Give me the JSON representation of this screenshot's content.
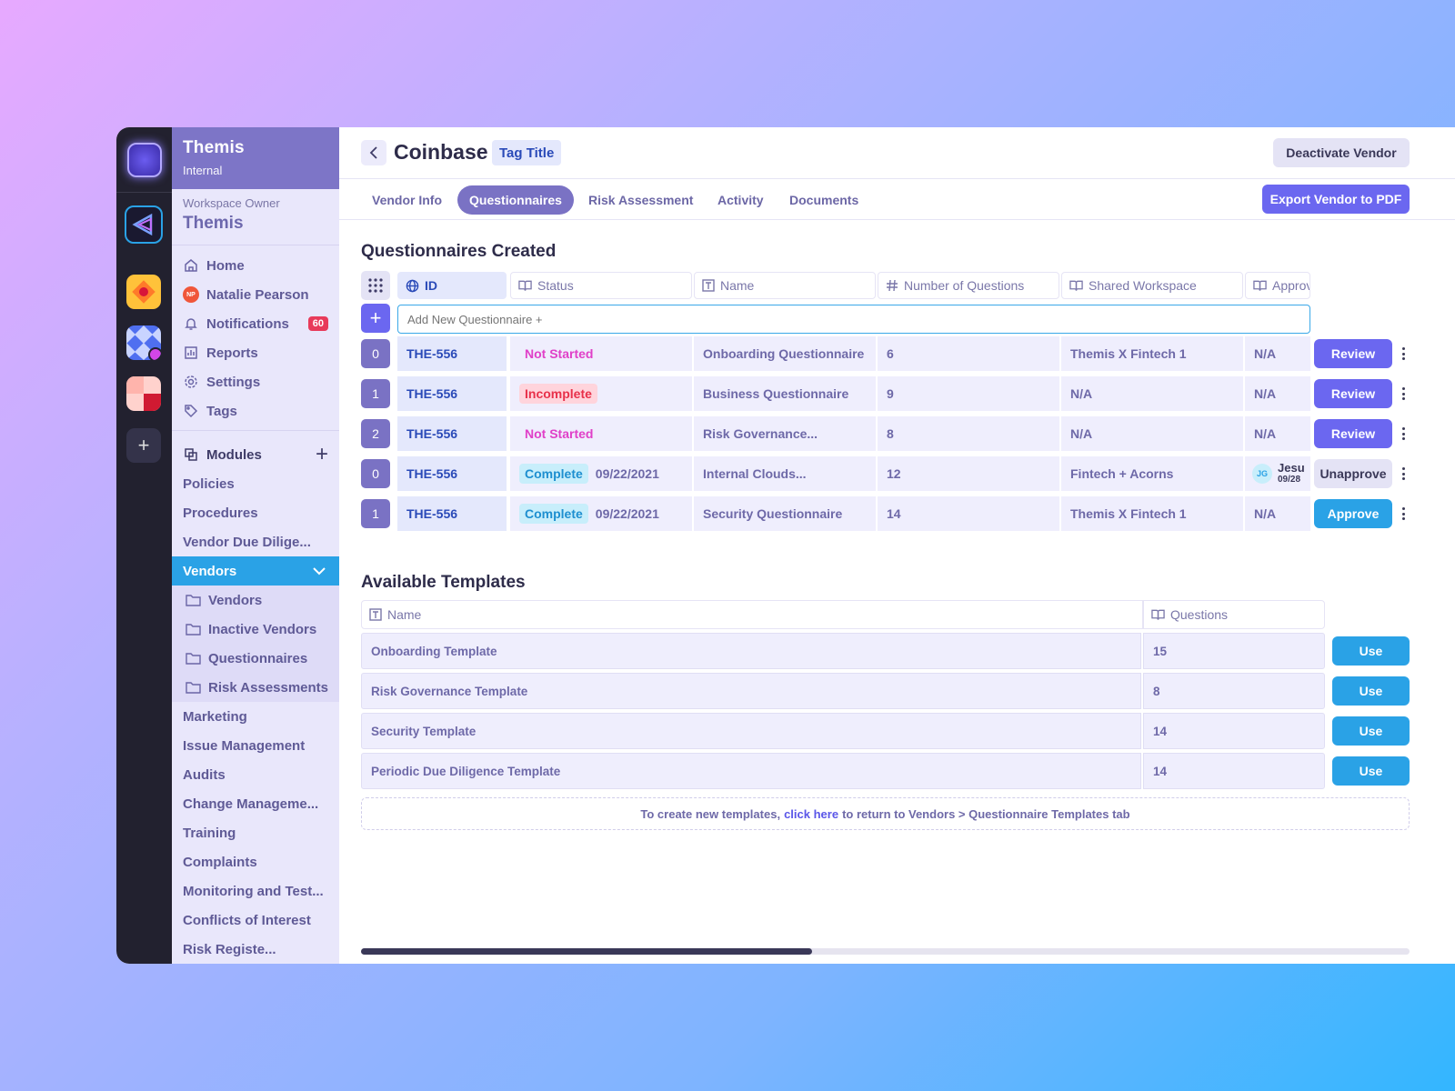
{
  "workspace": {
    "org_name": "Themis",
    "org_sub": "Internal",
    "owner_label": "Workspace Owner",
    "owner_name": "Themis"
  },
  "nav": {
    "home": "Home",
    "user": "Natalie Pearson",
    "user_initials": "NP",
    "notifications": "Notifications",
    "notifications_count": "60",
    "reports": "Reports",
    "settings": "Settings",
    "tags": "Tags",
    "modules": "Modules",
    "modules_items": [
      "Policies",
      "Procedures",
      "Vendor Due Dilige..."
    ],
    "vendors": "Vendors",
    "vendor_sub": [
      "Vendors",
      "Inactive Vendors",
      "Questionnaires",
      "Risk Assessments"
    ],
    "more": [
      "Marketing",
      "Issue Management",
      "Audits",
      "Change Manageme...",
      "Training",
      "Complaints",
      "Monitoring and Test...",
      "Conflicts of Interest",
      "Risk Registe..."
    ]
  },
  "header": {
    "title": "Coinbase",
    "tag": "Tag Title",
    "deactivate": "Deactivate Vendor",
    "export": "Export Vendor to PDF"
  },
  "tabs": [
    "Vendor Info",
    "Questionnaires",
    "Risk Assessment",
    "Activity",
    "Documents"
  ],
  "questionnaires": {
    "heading": "Questionnaires Created",
    "columns": [
      "ID",
      "Status",
      "Name",
      "Number of Questions",
      "Shared Workspace",
      "Approv"
    ],
    "add_placeholder": "Add New Questionnaire +",
    "rows": [
      {
        "num": "0",
        "id": "THE-556",
        "status": "Not Started",
        "date": "",
        "name": "Onboarding Questionnaire",
        "count": "6",
        "workspace": "Themis X Fintech 1",
        "approval": "N/A",
        "approver": "",
        "approver_initials": "",
        "approval_date": "",
        "action": "Review"
      },
      {
        "num": "1",
        "id": "THE-556",
        "status": "Incomplete",
        "date": "",
        "name": "Business Questionnaire",
        "count": "9",
        "workspace": "N/A",
        "approval": "N/A",
        "approver": "",
        "approver_initials": "",
        "approval_date": "",
        "action": "Review"
      },
      {
        "num": "2",
        "id": "THE-556",
        "status": "Not Started",
        "date": "",
        "name": "Risk Governance...",
        "count": "8",
        "workspace": "N/A",
        "approval": "N/A",
        "approver": "",
        "approver_initials": "",
        "approval_date": "",
        "action": "Review"
      },
      {
        "num": "0",
        "id": "THE-556",
        "status": "Complete",
        "date": "09/22/2021",
        "name": "Internal Clouds...",
        "count": "12",
        "workspace": "Fintech + Acorns",
        "approval": "",
        "approver": "Jesu",
        "approver_initials": "JG",
        "approval_date": "09/28",
        "action": "Unapprove"
      },
      {
        "num": "1",
        "id": "THE-556",
        "status": "Complete",
        "date": "09/22/2021",
        "name": "Security Questionnaire",
        "count": "14",
        "workspace": "Themis X Fintech 1",
        "approval": "N/A",
        "approver": "",
        "approver_initials": "",
        "approval_date": "",
        "action": "Approve"
      }
    ]
  },
  "templates": {
    "heading": "Available Templates",
    "columns": [
      "Name",
      "Questions"
    ],
    "rows": [
      {
        "name": "Onboarding Template",
        "count": "15",
        "action": "Use"
      },
      {
        "name": "Risk Governance Template",
        "count": "8",
        "action": "Use"
      },
      {
        "name": "Security Template",
        "count": "14",
        "action": "Use"
      },
      {
        "name": "Periodic Due Diligence Template",
        "count": "14",
        "action": "Use"
      }
    ],
    "note_before": "To create new templates,",
    "note_link": "click here",
    "note_after": "to return to Vendors > Questionnaire Templates tab"
  },
  "scroll_progress": 0.43,
  "colors": {
    "accent": "#7a72c4",
    "primary_button": "#6b67f0",
    "use_button": "#2aa2e6",
    "not_started": "#e040c8",
    "incomplete": "#e8304a",
    "complete": "#1e8fd0"
  }
}
